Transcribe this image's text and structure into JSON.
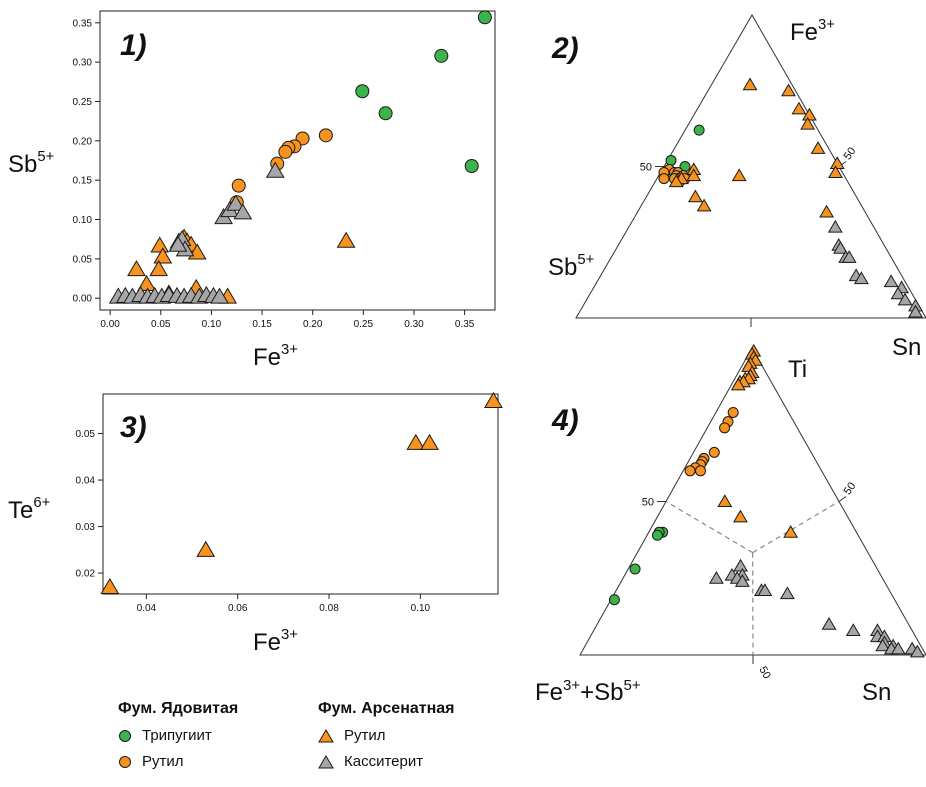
{
  "colors": {
    "green": "#3cb44b",
    "orange": "#f7931e",
    "gray": "#a6a6a6",
    "stroke": "#1a1a1a"
  },
  "legend": {
    "group1_title": "Фум. Ядовитая",
    "group1_items": [
      {
        "label": "Трипугиит",
        "marker": "circle",
        "color": "green"
      },
      {
        "label": "Рутил",
        "marker": "circle",
        "color": "orange"
      }
    ],
    "group2_title": "Фум. Арсенатная",
    "group2_items": [
      {
        "label": "Рутил",
        "marker": "triangle",
        "color": "orange"
      },
      {
        "label": "Касситерит",
        "marker": "triangle",
        "color": "gray"
      }
    ]
  },
  "chart_data": [
    {
      "type": "scatter",
      "panel_label": "1)",
      "xlabel_base": "Fe",
      "xlabel_sup": "3+",
      "ylabel_base": "Sb",
      "ylabel_sup": "5+",
      "xlim": [
        -0.01,
        0.38
      ],
      "ylim": [
        -0.015,
        0.365
      ],
      "xticks": [
        0.0,
        0.05,
        0.1,
        0.15,
        0.2,
        0.25,
        0.3,
        0.35
      ],
      "yticks": [
        0.0,
        0.05,
        0.1,
        0.15,
        0.2,
        0.25,
        0.3,
        0.35
      ],
      "tick_decimals": 2,
      "series": [
        {
          "color": "green",
          "marker": "circle",
          "x": [
            0.37,
            0.327,
            0.249,
            0.272,
            0.357
          ],
          "y": [
            0.357,
            0.308,
            0.263,
            0.235,
            0.168
          ]
        },
        {
          "color": "orange",
          "marker": "circle",
          "x": [
            0.213,
            0.19,
            0.182,
            0.176,
            0.173,
            0.165,
            0.127,
            0.125
          ],
          "y": [
            0.207,
            0.203,
            0.193,
            0.191,
            0.186,
            0.171,
            0.143,
            0.122
          ]
        },
        {
          "color": "orange",
          "marker": "triangle",
          "x": [
            0.233,
            0.026,
            0.049,
            0.052,
            0.048,
            0.068,
            0.073,
            0.076,
            0.08,
            0.086,
            0.036,
            0.058,
            0.085,
            0.116
          ],
          "y": [
            0.073,
            0.037,
            0.067,
            0.053,
            0.037,
            0.072,
            0.077,
            0.072,
            0.068,
            0.058,
            0.018,
            0.006,
            0.013,
            0.002
          ]
        },
        {
          "color": "gray",
          "marker": "triangle",
          "x": [
            0.008,
            0.015,
            0.022,
            0.03,
            0.037,
            0.044,
            0.051,
            0.058,
            0.066,
            0.073,
            0.08,
            0.088,
            0.095,
            0.102,
            0.108,
            0.071,
            0.074,
            0.067,
            0.112,
            0.118,
            0.124,
            0.131,
            0.163
          ],
          "y": [
            0.002,
            0.003,
            0.002,
            0.004,
            0.002,
            0.003,
            0.002,
            0.004,
            0.003,
            0.002,
            0.003,
            0.002,
            0.004,
            0.003,
            0.002,
            0.075,
            0.062,
            0.068,
            0.103,
            0.112,
            0.12,
            0.109,
            0.162
          ]
        }
      ]
    },
    {
      "type": "scatter",
      "panel_label": "3)",
      "xlabel_base": "Fe",
      "xlabel_sup": "3+",
      "ylabel_base": "Te",
      "ylabel_sup": "6+",
      "xlim": [
        0.0305,
        0.117
      ],
      "ylim": [
        0.0155,
        0.0585
      ],
      "xticks": [
        0.04,
        0.06,
        0.08,
        0.1
      ],
      "yticks": [
        0.02,
        0.03,
        0.04,
        0.05
      ],
      "tick_decimals": 2,
      "series": [
        {
          "color": "orange",
          "marker": "triangle",
          "x": [
            0.032,
            0.053,
            0.099,
            0.102,
            0.116
          ],
          "y": [
            0.017,
            0.025,
            0.048,
            0.048,
            0.057
          ]
        }
      ]
    },
    {
      "type": "ternary",
      "panel_label": "2)",
      "apex_top_base": "Fe",
      "apex_top_sup": "3+",
      "apex_left_base": "Sb",
      "apex_left_sup": "5+",
      "apex_right_label": "Sn",
      "tick_value": "50",
      "series": [
        {
          "color": "green",
          "marker": "circle",
          "Fe": [
            62,
            52,
            50,
            47
          ],
          "Sb": [
            34,
            47,
            44,
            49
          ],
          "Sn": [
            4,
            1,
            6,
            4
          ]
        },
        {
          "color": "orange",
          "marker": "circle",
          "Fe": [
            49,
            48,
            48,
            47,
            47,
            46,
            46,
            46,
            45,
            48,
            46
          ],
          "Sb": [
            49,
            48,
            47,
            48,
            46,
            48,
            49,
            46,
            48,
            51,
            52
          ],
          "Sn": [
            2,
            4,
            5,
            5,
            7,
            6,
            5,
            8,
            7,
            1,
            2
          ]
        },
        {
          "color": "orange",
          "marker": "triangle",
          "Fe": [
            77,
            75,
            69,
            67,
            64,
            56,
            51,
            48,
            47,
            40,
            37,
            35,
            49,
            46,
            47,
            45
          ],
          "Sb": [
            12,
            2,
            2,
            0,
            2,
            3,
            0,
            2,
            30,
            46,
            45,
            11,
            42,
            47,
            43,
            49
          ],
          "Sn": [
            11,
            23,
            29,
            33,
            34,
            41,
            49,
            50,
            23,
            14,
            18,
            54,
            9,
            7,
            10,
            6
          ]
        },
        {
          "color": "gray",
          "marker": "triangle",
          "Fe": [
            30,
            24,
            23,
            20,
            20,
            14,
            13,
            12,
            10,
            8,
            6,
            4,
            2
          ],
          "Sb": [
            11,
            13,
            13,
            13,
            12,
            13,
            12,
            4,
            2,
            4,
            3,
            1,
            2
          ],
          "Sn": [
            59,
            63,
            64,
            67,
            68,
            73,
            75,
            84,
            88,
            88,
            91,
            95,
            96
          ]
        }
      ]
    },
    {
      "type": "ternary",
      "panel_label": "4)",
      "apex_top_label": "Ti",
      "apex_left_base": "Fe",
      "apex_left_sup": "3+",
      "apex_left_mid": "+Sb",
      "apex_left_sup2": "5+",
      "apex_right_label": "Sn",
      "tick_value": "50",
      "dashed_center": [
        33.3,
        33.3,
        33.3
      ],
      "series": [
        {
          "color": "green",
          "marker": "circle",
          "Ti": [
            40,
            40,
            39,
            28,
            18
          ],
          "FeSb": [
            56,
            57,
            58,
            70,
            81
          ],
          "Sn": [
            4,
            3,
            3,
            2,
            1
          ]
        },
        {
          "color": "orange",
          "marker": "circle",
          "Ti": [
            79,
            76,
            74,
            66,
            64,
            64,
            63,
            62,
            61,
            60,
            60
          ],
          "FeSb": [
            16,
            19,
            21,
            28,
            32,
            32,
            33,
            34,
            36,
            35,
            38
          ],
          "Sn": [
            5,
            5,
            5,
            6,
            4,
            4,
            4,
            4,
            3,
            5,
            2
          ]
        },
        {
          "color": "orange",
          "marker": "triangle",
          "Ti": [
            99,
            98,
            97,
            96,
            95,
            94,
            92,
            91,
            90,
            90,
            89,
            89,
            88,
            50,
            45,
            40
          ],
          "FeSb": [
            0,
            1,
            1,
            1,
            3,
            4,
            4,
            5,
            7,
            6,
            9,
            8,
            10,
            33,
            31,
            19
          ],
          "Sn": [
            1,
            1,
            2,
            3,
            2,
            2,
            4,
            4,
            3,
            4,
            2,
            3,
            2,
            17,
            24,
            41
          ]
        },
        {
          "color": "gray",
          "marker": "triangle",
          "Ti": [
            29,
            26,
            26,
            25,
            25,
            24,
            21,
            21,
            20,
            10,
            8,
            8,
            6,
            6,
            4,
            3,
            3,
            2,
            2,
            2,
            1
          ],
          "FeSb": [
            39,
            43,
            40,
            48,
            42,
            41,
            37,
            36,
            30,
            23,
            17,
            10,
            11,
            9,
            10,
            11,
            8,
            9,
            7,
            3,
            2
          ],
          "Sn": [
            32,
            31,
            34,
            27,
            33,
            35,
            42,
            43,
            50,
            67,
            75,
            82,
            83,
            85,
            86,
            86,
            89,
            89,
            91,
            95,
            97
          ]
        }
      ]
    }
  ]
}
